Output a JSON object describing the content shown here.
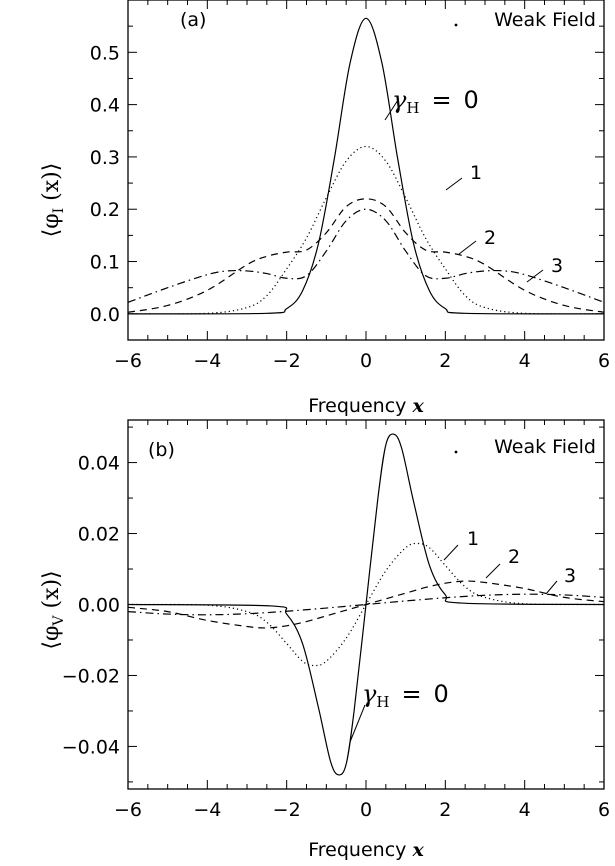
{
  "chart_data": [
    {
      "type": "line",
      "panel_label": "(a)",
      "corner_label": "Weak Field",
      "ylabel_main": "⟨φ",
      "ylabel_sub": "I",
      "ylabel_tail": " (x)⟩",
      "xlabel_prefix": "Frequency ",
      "xlabel_var": "x",
      "xlim": [
        -6,
        6
      ],
      "ylim": [
        -0.05,
        0.6
      ],
      "x_ticks": [
        "−6",
        "−4",
        "−2",
        "0",
        "2",
        "4",
        "6"
      ],
      "y_ticks": [
        "0.0",
        "0.1",
        "0.2",
        "0.3",
        "0.4",
        "0.5"
      ],
      "curve_labels": [
        "γ",
        "H",
        "=",
        "0",
        "1",
        "2",
        "3"
      ],
      "series": [
        {
          "name": "0",
          "style": "solid",
          "x": [
            -6,
            -2.5,
            -2,
            -1.6,
            -1.2,
            -0.8,
            -0.4,
            0,
            0.4,
            0.8,
            1.2,
            1.6,
            2,
            2.5,
            6
          ],
          "y": [
            0,
            0.001,
            0.01,
            0.044,
            0.134,
            0.296,
            0.48,
            0.565,
            0.48,
            0.296,
            0.134,
            0.044,
            0.01,
            0.001,
            0
          ]
        },
        {
          "name": "1",
          "style": "dotted",
          "x": [
            -6,
            -4,
            -3,
            -2.5,
            -2,
            -1.5,
            -1,
            -0.5,
            0,
            0.5,
            1,
            1.5,
            2,
            2.5,
            3,
            4,
            6
          ],
          "y": [
            0,
            0.001,
            0.012,
            0.035,
            0.086,
            0.145,
            0.222,
            0.292,
            0.32,
            0.292,
            0.222,
            0.145,
            0.086,
            0.035,
            0.012,
            0.001,
            0
          ]
        },
        {
          "name": "2",
          "style": "dashed",
          "x": [
            -6,
            -5,
            -4,
            -3,
            -2.5,
            -2,
            -1.5,
            -1,
            -0.5,
            0,
            0.5,
            1,
            1.5,
            2,
            2.5,
            3,
            4,
            5,
            6
          ],
          "y": [
            0.003,
            0.016,
            0.045,
            0.094,
            0.11,
            0.118,
            0.122,
            0.155,
            0.205,
            0.22,
            0.205,
            0.155,
            0.122,
            0.118,
            0.11,
            0.094,
            0.045,
            0.016,
            0.003
          ]
        },
        {
          "name": "3",
          "style": "dashdot",
          "x": [
            -6,
            -5,
            -4,
            -3.5,
            -3,
            -2.5,
            -2,
            -1.5,
            -1,
            -0.5,
            0,
            0.5,
            1,
            1.5,
            2,
            2.5,
            3,
            3.5,
            4,
            5,
            6
          ],
          "y": [
            0.022,
            0.05,
            0.075,
            0.082,
            0.082,
            0.077,
            0.068,
            0.073,
            0.12,
            0.178,
            0.2,
            0.178,
            0.12,
            0.073,
            0.068,
            0.077,
            0.082,
            0.082,
            0.075,
            0.05,
            0.022
          ]
        }
      ]
    },
    {
      "type": "line",
      "panel_label": "(b)",
      "corner_label": "Weak Field",
      "ylabel_main": "⟨φ",
      "ylabel_sub": "V",
      "ylabel_tail": " (x)⟩",
      "xlabel_prefix": "Frequency ",
      "xlabel_var": "x",
      "xlim": [
        -6,
        6
      ],
      "ylim": [
        -0.052,
        0.052
      ],
      "x_ticks": [
        "−6",
        "−4",
        "−2",
        "0",
        "2",
        "4",
        "6"
      ],
      "y_ticks": [
        "−0.04",
        "−0.02",
        "0.00",
        "0.02",
        "0.04"
      ],
      "curve_labels": [
        "γ",
        "H",
        "=",
        "0",
        "1",
        "2",
        "3"
      ],
      "series": [
        {
          "name": "0",
          "style": "solid",
          "x": [
            -6,
            -2.4,
            -2,
            -1.6,
            -1.2,
            -0.9,
            -0.7,
            -0.5,
            -0.3,
            0,
            0.3,
            0.5,
            0.7,
            0.9,
            1.2,
            1.6,
            2,
            2.4,
            6
          ],
          "y": [
            0,
            -0.0004,
            -0.0027,
            -0.011,
            -0.029,
            -0.044,
            -0.048,
            -0.045,
            -0.03,
            0,
            0.03,
            0.045,
            0.048,
            0.044,
            0.029,
            0.011,
            0.0027,
            0.0004,
            0
          ]
        },
        {
          "name": "1",
          "style": "dotted",
          "x": [
            -6,
            -4,
            -3,
            -2.5,
            -2,
            -1.6,
            -1.3,
            -1,
            -0.5,
            0,
            0.5,
            1,
            1.3,
            1.6,
            2,
            2.5,
            3,
            4,
            6
          ],
          "y": [
            0,
            -0.0002,
            -0.002,
            -0.005,
            -0.011,
            -0.016,
            -0.0172,
            -0.016,
            -0.0095,
            0,
            0.0095,
            0.016,
            0.0172,
            0.016,
            0.011,
            0.005,
            0.002,
            0.0002,
            0
          ]
        },
        {
          "name": "2",
          "style": "dashed",
          "x": [
            -6,
            -5,
            -4,
            -3,
            -2.5,
            -2,
            -1.5,
            -1,
            -0.5,
            0,
            0.5,
            1,
            1.5,
            2,
            2.5,
            3,
            4,
            5,
            6
          ],
          "y": [
            -0.0008,
            -0.002,
            -0.0045,
            -0.0062,
            -0.0066,
            -0.006,
            -0.0048,
            -0.0032,
            -0.0016,
            0,
            0.0016,
            0.0032,
            0.0048,
            0.006,
            0.0066,
            0.0062,
            0.0045,
            0.002,
            0.0008
          ]
        },
        {
          "name": "3",
          "style": "dashdot",
          "x": [
            -6,
            -5,
            -4,
            -3,
            -2,
            -1,
            0,
            1,
            2,
            3,
            4,
            5,
            6
          ],
          "y": [
            -0.002,
            -0.0027,
            -0.0029,
            -0.0026,
            -0.0019,
            -0.001,
            0,
            0.001,
            0.0019,
            0.0026,
            0.0029,
            0.0027,
            0.002
          ]
        }
      ]
    }
  ]
}
